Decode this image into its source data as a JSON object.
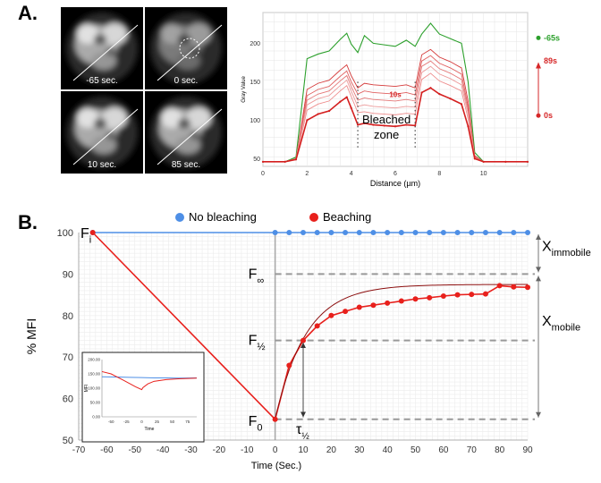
{
  "panel_a": {
    "label": "A.",
    "tiles": [
      {
        "caption": "-65 sec."
      },
      {
        "caption": "0 sec."
      },
      {
        "caption": "10 sec."
      },
      {
        "caption": "85 sec."
      }
    ]
  },
  "panel_b": {
    "label": "B."
  },
  "chart_data": [
    {
      "type": "line",
      "title": "",
      "xlabel": "Distance (µm)",
      "ylabel": "Gray Value",
      "xlim": [
        0,
        12
      ],
      "ylim": [
        40,
        240
      ],
      "xticks": [
        0,
        2,
        4,
        6,
        8,
        10
      ],
      "yticks": [
        50,
        100,
        150,
        200
      ],
      "x": [
        0.0,
        1.0,
        1.5,
        2.0,
        2.5,
        3.0,
        3.5,
        3.8,
        4.0,
        4.3,
        4.6,
        5.0,
        5.5,
        6.0,
        6.5,
        6.9,
        7.2,
        7.6,
        8.0,
        8.5,
        9.0,
        9.3,
        9.6,
        10.0,
        11.0,
        12.0
      ],
      "series": [
        {
          "name": "-65s",
          "values": [
            46,
            46,
            52,
            180,
            186,
            190,
            205,
            213,
            199,
            188,
            210,
            200,
            198,
            196,
            204,
            196,
            212,
            226,
            212,
            206,
            200,
            150,
            58,
            46,
            46,
            46
          ]
        },
        {
          "values": [
            46,
            46,
            50,
            140,
            148,
            152,
            165,
            172,
            158,
            142,
            148,
            146,
            145,
            144,
            146,
            142,
            185,
            192,
            182,
            176,
            168,
            125,
            54,
            46,
            46,
            46
          ]
        },
        {
          "values": [
            46,
            46,
            50,
            132,
            140,
            144,
            157,
            164,
            150,
            134,
            138,
            136,
            135,
            134,
            136,
            133,
            177,
            184,
            174,
            168,
            160,
            118,
            53,
            46,
            46,
            46
          ]
        },
        {
          "values": [
            46,
            46,
            50,
            126,
            134,
            138,
            151,
            158,
            144,
            126,
            129,
            127,
            126,
            125,
            127,
            125,
            170,
            177,
            167,
            161,
            153,
            113,
            52,
            46,
            46,
            46
          ]
        },
        {
          "values": [
            46,
            46,
            50,
            120,
            128,
            132,
            145,
            152,
            138,
            118,
            120,
            118,
            117,
            116,
            118,
            117,
            162,
            170,
            160,
            154,
            146,
            108,
            51,
            46,
            46,
            46
          ]
        },
        {
          "name": "10s",
          "values": [
            46,
            46,
            50,
            113,
            121,
            125,
            138,
            145,
            131,
            110,
            111,
            109,
            108,
            107,
            109,
            108,
            153,
            161,
            151,
            145,
            138,
            102,
            51,
            46,
            46,
            46
          ]
        },
        {
          "name": "0s",
          "values": [
            46,
            46,
            49,
            100,
            108,
            112,
            124,
            130,
            116,
            94,
            96,
            94,
            93,
            92,
            94,
            93,
            136,
            142,
            134,
            128,
            121,
            92,
            50,
            46,
            46,
            46
          ]
        }
      ],
      "legend": [
        {
          "label": "-65s",
          "color": "#2ca02c"
        },
        {
          "label": "89s",
          "color": "#d62728"
        },
        {
          "label": "0s",
          "color": "#d62728"
        }
      ],
      "annotations": [
        "Bleached",
        "zone"
      ],
      "bleach_zone_x": [
        4.3,
        6.9
      ]
    },
    {
      "type": "line",
      "title": "",
      "xlabel": "Time (Sec.)",
      "ylabel": "% MFI",
      "xlim": [
        -70,
        90
      ],
      "ylim": [
        50,
        100
      ],
      "xticks": [
        -70,
        -60,
        -50,
        -40,
        -30,
        -20,
        -10,
        0,
        10,
        20,
        30,
        40,
        50,
        60,
        70,
        80,
        90
      ],
      "yticks": [
        50,
        60,
        70,
        80,
        90,
        100
      ],
      "legend_placement": "top-center",
      "series": [
        {
          "name": "No bleaching",
          "color": "#4e8fe6",
          "x": [
            -65,
            0,
            5,
            10,
            15,
            20,
            25,
            30,
            35,
            40,
            45,
            50,
            55,
            60,
            65,
            70,
            75,
            80,
            85,
            90
          ],
          "values": [
            100,
            100,
            100,
            100,
            100,
            100,
            100,
            100,
            100,
            100,
            100,
            100,
            100,
            100,
            100,
            100,
            100,
            100,
            100,
            100
          ]
        },
        {
          "name": "Beaching",
          "color": "#e8201c",
          "x": [
            -65,
            0,
            5,
            10,
            15,
            20,
            25,
            30,
            35,
            40,
            45,
            50,
            55,
            60,
            65,
            70,
            75,
            80,
            85,
            90
          ],
          "values": [
            100,
            55,
            68,
            74,
            77.5,
            80,
            81,
            82,
            82.5,
            83,
            83.5,
            84,
            84.3,
            84.7,
            85,
            85.1,
            85.2,
            87.2,
            86.9,
            86.8
          ]
        }
      ],
      "reference_levels": [
        {
          "label_main": "F",
          "label_sub": "i",
          "y": 100
        },
        {
          "label_main": "F",
          "label_sub": "∞",
          "y": 90
        },
        {
          "label_main": "F",
          "label_sub": "½",
          "y": 74
        },
        {
          "label_main": "F",
          "label_sub": "0",
          "y": 55
        }
      ],
      "tau_label": {
        "main": "τ",
        "sub": "½",
        "x": 10
      },
      "brackets": [
        {
          "main": "X",
          "sub": "immobile",
          "from": 90,
          "to": 100
        },
        {
          "main": "X",
          "sub": "mobile",
          "from": 55,
          "to": 90
        }
      ],
      "inset": {
        "xlabel": "Time",
        "ylabel": "MFI",
        "xlim": [
          -65,
          90
        ],
        "ylim": [
          0,
          200
        ],
        "xticks": [
          -50,
          -25,
          0,
          25,
          50,
          75
        ],
        "yticks": [
          "0.00",
          "50.00",
          "100.00",
          "150.00",
          "200.00"
        ],
        "blue": {
          "x": [
            -65,
            -40,
            -20,
            0,
            20,
            40,
            60,
            90
          ],
          "values": [
            140,
            139,
            138,
            137,
            136,
            136,
            135,
            136
          ]
        },
        "red": {
          "x": [
            -65,
            -50,
            -30,
            -10,
            0,
            2,
            10,
            20,
            40,
            60,
            90
          ],
          "values": [
            158,
            150,
            128,
            105,
            95,
            102,
            115,
            124,
            130,
            133,
            135
          ]
        }
      }
    }
  ]
}
